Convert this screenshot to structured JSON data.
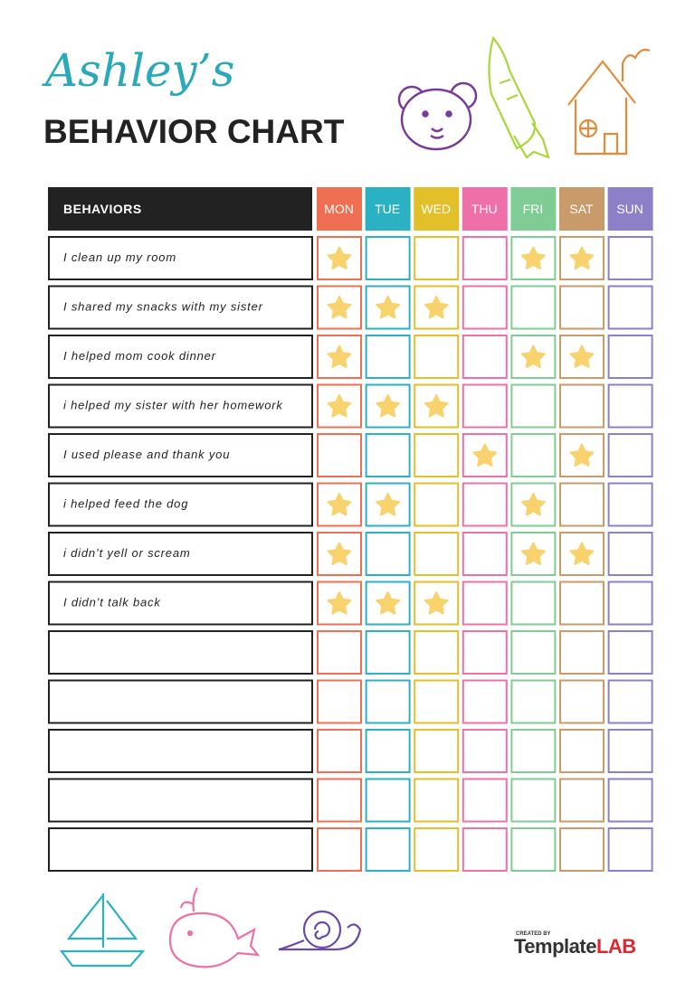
{
  "header": {
    "name": "Ashley’s",
    "title": "BEHAVIOR CHART"
  },
  "table": {
    "behaviors_header": "BEHAVIORS",
    "days": [
      {
        "label": "MON",
        "color": "#ef6f53"
      },
      {
        "label": "TUE",
        "color": "#2bb1c4"
      },
      {
        "label": "WED",
        "color": "#e3bf2a"
      },
      {
        "label": "THU",
        "color": "#ef70a8"
      },
      {
        "label": "FRI",
        "color": "#7fcc95"
      },
      {
        "label": "SAT",
        "color": "#c99a6a"
      },
      {
        "label": "SUN",
        "color": "#8d80c8"
      }
    ],
    "rows": [
      {
        "behavior": "I clean up my room",
        "stars": [
          true,
          false,
          false,
          false,
          true,
          true,
          false
        ]
      },
      {
        "behavior": "I shared my snacks with my sister",
        "stars": [
          true,
          true,
          true,
          false,
          false,
          false,
          false
        ]
      },
      {
        "behavior": "I helped mom cook dinner",
        "stars": [
          true,
          false,
          false,
          false,
          true,
          true,
          false
        ]
      },
      {
        "behavior": "i helped my sister with her homework",
        "stars": [
          true,
          true,
          true,
          false,
          false,
          false,
          false
        ]
      },
      {
        "behavior": "I used please and thank you",
        "stars": [
          false,
          false,
          false,
          true,
          false,
          true,
          false
        ]
      },
      {
        "behavior": "i helped feed the dog",
        "stars": [
          true,
          true,
          false,
          false,
          true,
          false,
          false
        ]
      },
      {
        "behavior": "i didn’t yell or scream",
        "stars": [
          true,
          false,
          false,
          false,
          true,
          true,
          false
        ]
      },
      {
        "behavior": "I didn’t talk back",
        "stars": [
          true,
          true,
          true,
          false,
          false,
          false,
          false
        ]
      },
      {
        "behavior": null,
        "stars": [
          false,
          false,
          false,
          false,
          false,
          false,
          false
        ]
      },
      {
        "behavior": null,
        "stars": [
          false,
          false,
          false,
          false,
          false,
          false,
          false
        ]
      },
      {
        "behavior": null,
        "stars": [
          false,
          false,
          false,
          false,
          false,
          false,
          false
        ]
      },
      {
        "behavior": null,
        "stars": [
          false,
          false,
          false,
          false,
          false,
          false,
          false
        ]
      },
      {
        "behavior": null,
        "stars": [
          false,
          false,
          false,
          false,
          false,
          false,
          false
        ]
      }
    ]
  },
  "footer": {
    "created_by": "CREATED BY",
    "brand": "Template",
    "brand_accent": "LAB"
  }
}
